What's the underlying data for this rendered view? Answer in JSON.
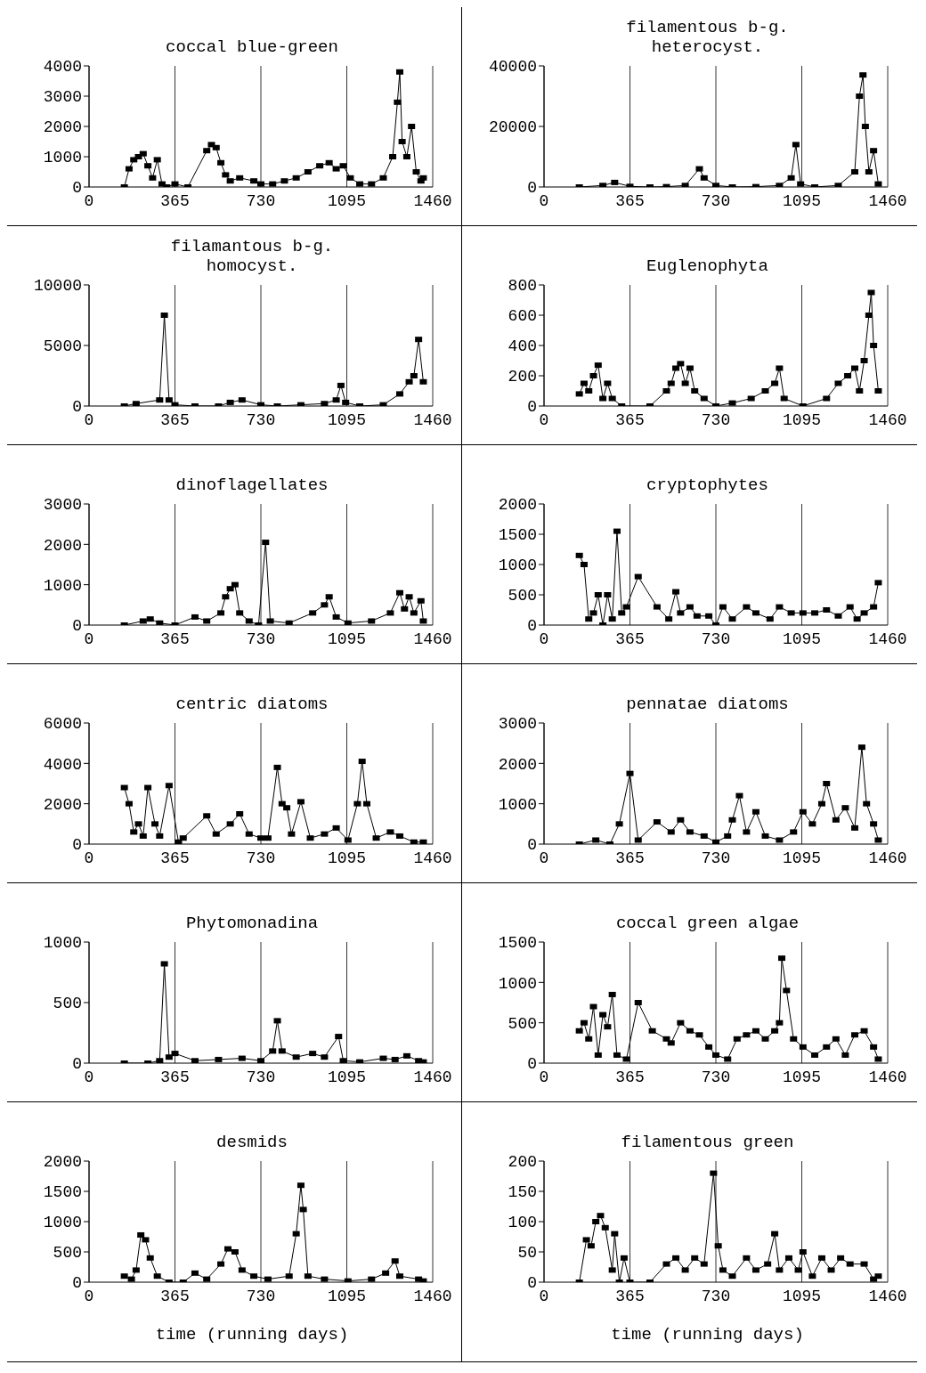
{
  "chart_data": [
    {
      "type": "line",
      "title": "coccal blue-green",
      "color": "#000000",
      "marker": "square",
      "grid": "x",
      "xlim": [
        0,
        1460
      ],
      "xticks": [
        0,
        365,
        730,
        1095,
        1460
      ],
      "ylim": [
        0,
        4000
      ],
      "yticks": [
        0,
        1000,
        2000,
        3000,
        4000
      ],
      "x": [
        150,
        170,
        190,
        210,
        230,
        250,
        270,
        290,
        310,
        330,
        365,
        420,
        500,
        520,
        540,
        560,
        580,
        600,
        640,
        700,
        730,
        780,
        830,
        880,
        930,
        980,
        1020,
        1050,
        1080,
        1110,
        1150,
        1200,
        1250,
        1290,
        1310,
        1320,
        1330,
        1350,
        1370,
        1390,
        1410,
        1420
      ],
      "values": [
        0,
        600,
        900,
        1000,
        1100,
        700,
        300,
        900,
        100,
        0,
        100,
        0,
        1200,
        1400,
        1300,
        800,
        400,
        200,
        300,
        200,
        100,
        100,
        200,
        300,
        500,
        700,
        800,
        600,
        700,
        300,
        100,
        100,
        300,
        1000,
        2800,
        3800,
        1500,
        1000,
        2000,
        500,
        200,
        300
      ]
    },
    {
      "type": "line",
      "title": "filamentous b-g.\nheterocyst.",
      "color": "#000000",
      "marker": "square",
      "grid": "x",
      "xlim": [
        0,
        1460
      ],
      "xticks": [
        0,
        365,
        730,
        1095,
        1460
      ],
      "ylim": [
        0,
        40000
      ],
      "yticks": [
        0,
        20000,
        40000
      ],
      "x": [
        150,
        250,
        300,
        365,
        450,
        520,
        600,
        660,
        680,
        730,
        800,
        900,
        1000,
        1050,
        1070,
        1090,
        1150,
        1250,
        1320,
        1340,
        1355,
        1365,
        1380,
        1400,
        1420
      ],
      "values": [
        0,
        500,
        1500,
        200,
        0,
        100,
        500,
        6000,
        3000,
        500,
        0,
        100,
        500,
        3000,
        14000,
        1000,
        0,
        500,
        5000,
        30000,
        37000,
        20000,
        5000,
        12000,
        1000
      ]
    },
    {
      "type": "line",
      "title": "filamantous b-g.\nhomocyst.",
      "color": "#000000",
      "marker": "square",
      "grid": "x",
      "xlim": [
        0,
        1460
      ],
      "xticks": [
        0,
        365,
        730,
        1095,
        1460
      ],
      "ylim": [
        0,
        10000
      ],
      "yticks": [
        0,
        5000,
        10000
      ],
      "x": [
        150,
        200,
        300,
        320,
        340,
        365,
        450,
        550,
        600,
        650,
        730,
        800,
        900,
        1000,
        1050,
        1070,
        1090,
        1150,
        1250,
        1320,
        1360,
        1380,
        1400,
        1420
      ],
      "values": [
        0,
        200,
        500,
        7500,
        500,
        100,
        0,
        0,
        300,
        500,
        100,
        0,
        100,
        200,
        500,
        1700,
        300,
        0,
        100,
        1000,
        2000,
        2500,
        5500,
        2000
      ]
    },
    {
      "type": "line",
      "title": "Euglenophyta",
      "color": "#000000",
      "marker": "square",
      "grid": "x",
      "xlim": [
        0,
        1460
      ],
      "xticks": [
        0,
        365,
        730,
        1095,
        1460
      ],
      "ylim": [
        0,
        800
      ],
      "yticks": [
        0,
        200,
        400,
        600,
        800
      ],
      "x": [
        150,
        170,
        190,
        210,
        230,
        250,
        270,
        290,
        330,
        450,
        520,
        540,
        560,
        580,
        600,
        620,
        640,
        680,
        730,
        800,
        880,
        940,
        980,
        1000,
        1020,
        1100,
        1200,
        1250,
        1290,
        1320,
        1340,
        1360,
        1380,
        1390,
        1400,
        1420
      ],
      "values": [
        80,
        150,
        100,
        200,
        270,
        50,
        150,
        50,
        0,
        0,
        100,
        150,
        250,
        280,
        150,
        250,
        100,
        50,
        0,
        20,
        50,
        100,
        150,
        250,
        50,
        0,
        50,
        150,
        200,
        250,
        100,
        300,
        600,
        750,
        400,
        100
      ]
    },
    {
      "type": "line",
      "title": "dinoflagellates",
      "color": "#000000",
      "marker": "square",
      "grid": "x",
      "xlim": [
        0,
        1460
      ],
      "xticks": [
        0,
        365,
        730,
        1095,
        1460
      ],
      "ylim": [
        0,
        3000
      ],
      "yticks": [
        0,
        1000,
        2000,
        3000
      ],
      "x": [
        150,
        230,
        260,
        300,
        365,
        450,
        500,
        560,
        580,
        600,
        620,
        640,
        680,
        720,
        750,
        770,
        850,
        950,
        1000,
        1020,
        1050,
        1100,
        1200,
        1280,
        1320,
        1340,
        1360,
        1380,
        1410,
        1420
      ],
      "values": [
        0,
        100,
        150,
        50,
        0,
        200,
        100,
        300,
        700,
        900,
        1000,
        300,
        100,
        0,
        2050,
        100,
        50,
        300,
        500,
        700,
        200,
        50,
        100,
        300,
        800,
        400,
        700,
        300,
        600,
        100
      ]
    },
    {
      "type": "line",
      "title": "cryptophytes",
      "color": "#000000",
      "marker": "square",
      "grid": "x",
      "xlim": [
        0,
        1460
      ],
      "xticks": [
        0,
        365,
        730,
        1095,
        1460
      ],
      "ylim": [
        0,
        2000
      ],
      "yticks": [
        0,
        500,
        1000,
        1500,
        2000
      ],
      "x": [
        150,
        170,
        190,
        210,
        230,
        250,
        270,
        290,
        310,
        330,
        350,
        400,
        480,
        530,
        560,
        580,
        620,
        650,
        700,
        730,
        760,
        800,
        860,
        900,
        960,
        1000,
        1050,
        1100,
        1150,
        1200,
        1250,
        1300,
        1330,
        1360,
        1400,
        1420
      ],
      "values": [
        1150,
        1000,
        100,
        200,
        500,
        0,
        500,
        100,
        1550,
        200,
        300,
        800,
        300,
        100,
        550,
        200,
        300,
        150,
        150,
        0,
        300,
        100,
        300,
        200,
        100,
        300,
        200,
        200,
        200,
        250,
        150,
        300,
        100,
        200,
        300,
        700
      ]
    },
    {
      "type": "line",
      "title": "centric diatoms",
      "color": "#000000",
      "marker": "square",
      "grid": "x",
      "xlim": [
        0,
        1460
      ],
      "xticks": [
        0,
        365,
        730,
        1095,
        1460
      ],
      "ylim": [
        0,
        6000
      ],
      "yticks": [
        0,
        2000,
        4000,
        6000
      ],
      "x": [
        150,
        170,
        190,
        210,
        230,
        250,
        280,
        300,
        340,
        380,
        400,
        500,
        540,
        600,
        640,
        680,
        730,
        760,
        800,
        820,
        840,
        860,
        900,
        940,
        1000,
        1050,
        1100,
        1140,
        1160,
        1180,
        1220,
        1280,
        1320,
        1380,
        1420
      ],
      "values": [
        2800,
        2000,
        600,
        1000,
        400,
        2800,
        1000,
        400,
        2900,
        100,
        300,
        1400,
        500,
        1000,
        1500,
        500,
        300,
        300,
        3800,
        2000,
        1800,
        500,
        2100,
        300,
        500,
        800,
        200,
        2000,
        4100,
        2000,
        300,
        600,
        400,
        100,
        100
      ]
    },
    {
      "type": "line",
      "title": "pennatae diatoms",
      "color": "#000000",
      "marker": "square",
      "grid": "x",
      "xlim": [
        0,
        1460
      ],
      "xticks": [
        0,
        365,
        730,
        1095,
        1460
      ],
      "ylim": [
        0,
        3000
      ],
      "yticks": [
        0,
        1000,
        2000,
        3000
      ],
      "x": [
        150,
        220,
        280,
        320,
        365,
        400,
        480,
        540,
        580,
        620,
        680,
        730,
        780,
        800,
        830,
        860,
        900,
        940,
        1000,
        1060,
        1100,
        1140,
        1180,
        1200,
        1240,
        1280,
        1320,
        1350,
        1370,
        1400,
        1420
      ],
      "values": [
        0,
        100,
        0,
        500,
        1750,
        100,
        550,
        300,
        600,
        300,
        200,
        50,
        200,
        600,
        1200,
        300,
        800,
        200,
        100,
        300,
        800,
        500,
        1000,
        1500,
        600,
        900,
        400,
        2400,
        1000,
        500,
        100
      ]
    },
    {
      "type": "line",
      "title": "Phytomonadina",
      "color": "#000000",
      "marker": "square",
      "grid": "x",
      "xlim": [
        0,
        1460
      ],
      "xticks": [
        0,
        365,
        730,
        1095,
        1460
      ],
      "ylim": [
        0,
        1000
      ],
      "yticks": [
        0,
        500,
        1000
      ],
      "x": [
        150,
        250,
        300,
        320,
        340,
        365,
        450,
        550,
        650,
        730,
        780,
        800,
        820,
        880,
        950,
        1000,
        1060,
        1080,
        1150,
        1250,
        1300,
        1350,
        1400,
        1420
      ],
      "values": [
        0,
        0,
        20,
        820,
        50,
        80,
        20,
        30,
        40,
        20,
        100,
        350,
        100,
        50,
        80,
        50,
        220,
        20,
        10,
        40,
        30,
        60,
        20,
        10
      ]
    },
    {
      "type": "line",
      "title": "coccal green algae",
      "color": "#000000",
      "marker": "square",
      "grid": "x",
      "xlim": [
        0,
        1460
      ],
      "xticks": [
        0,
        365,
        730,
        1095,
        1460
      ],
      "ylim": [
        0,
        1500
      ],
      "yticks": [
        0,
        500,
        1000,
        1500
      ],
      "x": [
        150,
        170,
        190,
        210,
        230,
        250,
        270,
        290,
        310,
        350,
        400,
        460,
        520,
        540,
        580,
        620,
        660,
        700,
        730,
        780,
        820,
        860,
        900,
        940,
        980,
        1000,
        1010,
        1030,
        1060,
        1100,
        1150,
        1200,
        1240,
        1280,
        1320,
        1360,
        1400,
        1420
      ],
      "values": [
        400,
        500,
        300,
        700,
        100,
        600,
        450,
        850,
        100,
        50,
        750,
        400,
        300,
        250,
        500,
        400,
        350,
        200,
        100,
        50,
        300,
        350,
        400,
        300,
        400,
        500,
        1300,
        900,
        300,
        200,
        100,
        200,
        300,
        100,
        350,
        400,
        200,
        50
      ]
    },
    {
      "type": "line",
      "title": "desmids",
      "xlabel": "time (running days)",
      "color": "#000000",
      "marker": "square",
      "grid": "x",
      "xlim": [
        0,
        1460
      ],
      "xticks": [
        0,
        365,
        730,
        1095,
        1460
      ],
      "ylim": [
        0,
        2000
      ],
      "yticks": [
        0,
        500,
        1000,
        1500,
        2000
      ],
      "x": [
        150,
        180,
        200,
        220,
        240,
        260,
        290,
        340,
        400,
        450,
        500,
        560,
        590,
        620,
        650,
        700,
        760,
        850,
        880,
        900,
        910,
        930,
        1000,
        1100,
        1200,
        1260,
        1300,
        1320,
        1400,
        1420
      ],
      "values": [
        100,
        50,
        200,
        780,
        700,
        400,
        100,
        0,
        0,
        150,
        50,
        300,
        550,
        500,
        200,
        100,
        50,
        100,
        800,
        1600,
        1200,
        100,
        50,
        20,
        50,
        150,
        350,
        100,
        50,
        20
      ]
    },
    {
      "type": "line",
      "title": "filamentous green",
      "xlabel": "time (running days)",
      "color": "#000000",
      "marker": "square",
      "grid": "x",
      "xlim": [
        0,
        1460
      ],
      "xticks": [
        0,
        365,
        730,
        1095,
        1460
      ],
      "ylim": [
        0,
        200
      ],
      "yticks": [
        0,
        50,
        100,
        150,
        200
      ],
      "x": [
        150,
        180,
        200,
        220,
        240,
        260,
        290,
        300,
        320,
        340,
        365,
        450,
        520,
        560,
        600,
        640,
        680,
        720,
        740,
        760,
        800,
        860,
        900,
        950,
        980,
        1000,
        1040,
        1080,
        1100,
        1140,
        1180,
        1220,
        1260,
        1300,
        1360,
        1400,
        1420
      ],
      "values": [
        0,
        70,
        60,
        100,
        110,
        90,
        20,
        80,
        0,
        40,
        0,
        0,
        30,
        40,
        20,
        40,
        30,
        180,
        60,
        20,
        10,
        40,
        20,
        30,
        80,
        20,
        40,
        20,
        50,
        10,
        40,
        20,
        40,
        30,
        30,
        5,
        10
      ]
    }
  ]
}
